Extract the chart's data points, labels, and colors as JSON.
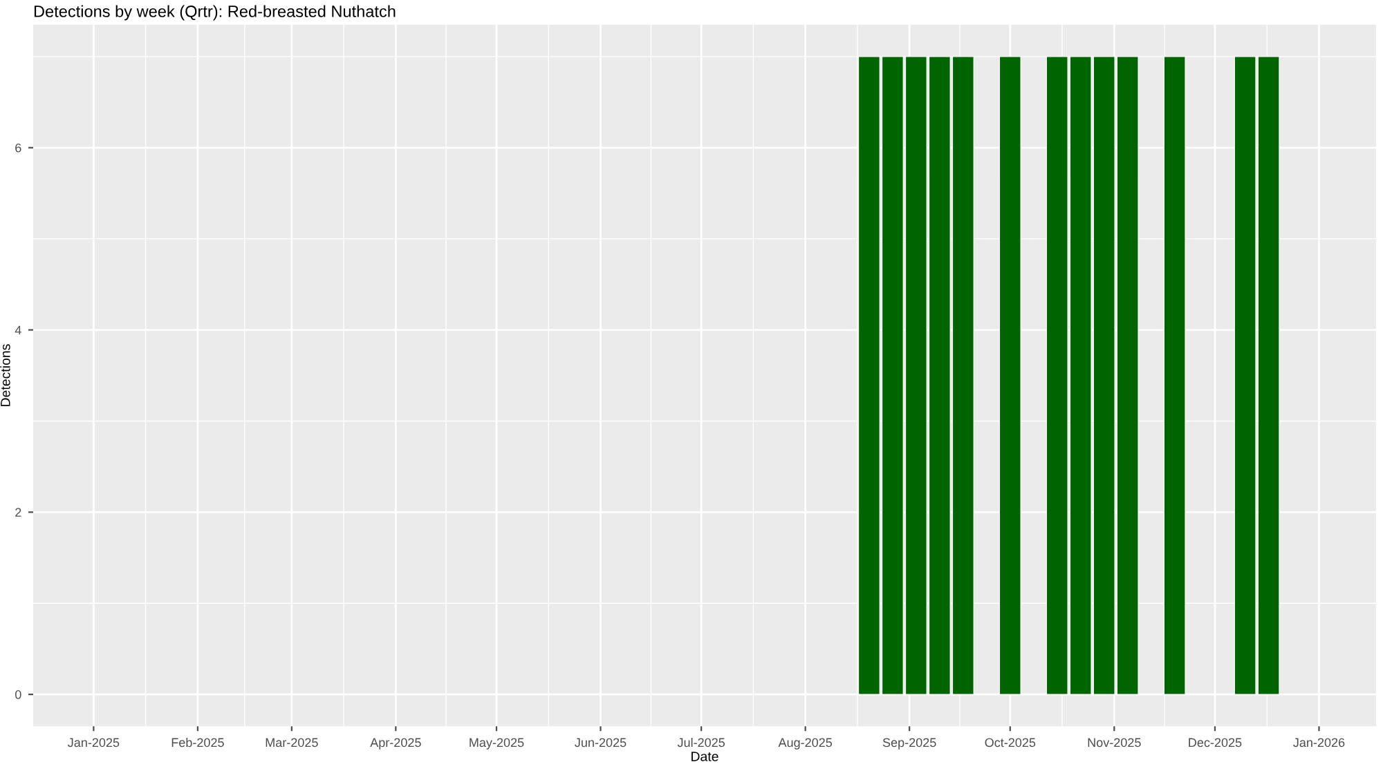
{
  "chart_data": {
    "type": "bar",
    "title": "Detections by week (Qrtr): Red-breasted Nuthatch",
    "xlabel": "Date",
    "ylabel": "Detections",
    "x": [
      "2025-08-20",
      "2025-08-27",
      "2025-09-03",
      "2025-09-10",
      "2025-09-17",
      "2025-10-01",
      "2025-10-15",
      "2025-10-22",
      "2025-10-29",
      "2025-11-05",
      "2025-11-19",
      "2025-12-10",
      "2025-12-17"
    ],
    "values": [
      7,
      7,
      7,
      7,
      7,
      7,
      7,
      7,
      7,
      7,
      7,
      7,
      7
    ],
    "color": "#006400",
    "xlim": [
      "2024-12-14",
      "2026-01-18"
    ],
    "xticks": [
      {
        "value": "2025-01",
        "label": "Jan-2025"
      },
      {
        "value": "2025-02",
        "label": "Feb-2025"
      },
      {
        "value": "2025-03",
        "label": "Mar-2025"
      },
      {
        "value": "2025-04",
        "label": "Apr-2025"
      },
      {
        "value": "2025-05",
        "label": "May-2025"
      },
      {
        "value": "2025-06",
        "label": "Jun-2025"
      },
      {
        "value": "2025-07",
        "label": "Jul-2025"
      },
      {
        "value": "2025-08",
        "label": "Aug-2025"
      },
      {
        "value": "2025-09",
        "label": "Sep-2025"
      },
      {
        "value": "2025-10",
        "label": "Oct-2025"
      },
      {
        "value": "2025-11",
        "label": "Nov-2025"
      },
      {
        "value": "2025-12",
        "label": "Dec-2025"
      },
      {
        "value": "2026-01",
        "label": "Jan-2026"
      }
    ],
    "ylim": [
      -0.35,
      7.35
    ],
    "yticks": [
      0,
      2,
      4,
      6
    ],
    "grid": true
  }
}
